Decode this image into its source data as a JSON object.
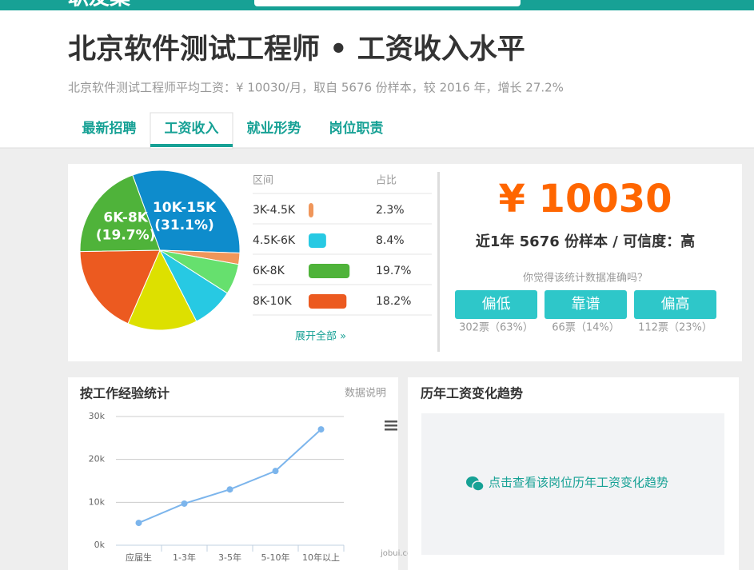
{
  "top_bar": {
    "logo": "职友集"
  },
  "header": {
    "title": "北京软件测试工程师 • 工资收入水平",
    "subtitle": "北京软件测试工程师平均工资：¥ 10030/月，取自 5676 份样本，较 2016 年，增长 27.2%"
  },
  "tabs": {
    "items": [
      "最新招聘",
      "工资收入",
      "就业形势",
      "岗位职责"
    ],
    "active": 1
  },
  "chart_data": [
    {
      "type": "pie",
      "categories": [
        "10K-15K",
        "3K-4.5K",
        null,
        "4.5K-6K",
        null,
        "8K-10K",
        "6K-8K"
      ],
      "values": [
        31.1,
        2.3,
        6.2,
        8.4,
        14.1,
        18.2,
        19.7
      ],
      "value_labels": [
        "(31.1%)",
        null,
        null,
        null,
        null,
        null,
        "(19.7%)"
      ],
      "colors": [
        "#0e8ccc",
        "#f0965a",
        "#66e06e",
        "#27c9e3",
        "#dde000",
        "#ec5a20",
        "#4fb33a"
      ]
    },
    {
      "type": "line",
      "title": "按工作经验统计",
      "note": "数据说明",
      "credit": "jobui.com",
      "categories": [
        "应届生",
        "1-3年",
        "3-5年",
        "5-10年",
        "10年以上"
      ],
      "values": [
        5200,
        9700,
        13000,
        17300,
        27000
      ],
      "color": "#7cb5ec",
      "ylim": [
        0,
        30000
      ],
      "yticks": [
        {
          "value": 0,
          "label": "0k"
        },
        {
          "value": 10000,
          "label": "10k"
        },
        {
          "value": 20000,
          "label": "20k"
        },
        {
          "value": 30000,
          "label": "30k"
        }
      ],
      "grid": true
    }
  ],
  "salary_table": {
    "columns": [
      "区间",
      "占比"
    ],
    "rows": [
      {
        "range": "3K-4.5K",
        "color": "#f0965a",
        "share": {
          "value": 2.3,
          "label": "2.3%"
        }
      },
      {
        "range": "4.5K-6K",
        "color": "#27c9e3",
        "share": {
          "value": 8.4,
          "label": "8.4%"
        }
      },
      {
        "range": "6K-8K",
        "color": "#4fb33a",
        "share": {
          "value": 19.7,
          "label": "19.7%"
        }
      },
      {
        "range": "8K-10K",
        "color": "#ec5a20",
        "share": {
          "value": 18.2,
          "label": "18.2%"
        }
      }
    ],
    "more": "展开全部 »"
  },
  "summary": {
    "average": "¥ 10030",
    "sample": "近1年 5676 份样本 / 可信度：高",
    "question": "你觉得该统计数据准确吗？",
    "votes": [
      {
        "label": "偏低",
        "count": "302票（63%）"
      },
      {
        "label": "靠谱",
        "count": "66票（14%）"
      },
      {
        "label": "偏高",
        "count": "112票（23%）"
      }
    ]
  },
  "trend_panel": {
    "title": "历年工资变化趋势",
    "link": "点击查看该岗位历年工资变化趋势"
  }
}
